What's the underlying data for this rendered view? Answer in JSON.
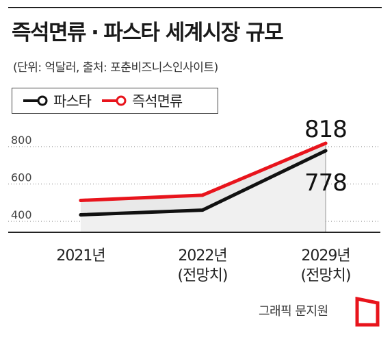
{
  "title": {
    "left": "즉석면류",
    "separator": "·",
    "right": "파스타 세계시장 규모"
  },
  "subtitle": "(단위: 억달러, 출처: 포춘비즈니스인사이트)",
  "legend": [
    {
      "label": "파스타",
      "color": "#111111"
    },
    {
      "label": "즉석면류",
      "color": "#e8141c"
    }
  ],
  "footer": {
    "credit": "그래픽 문지원"
  },
  "colors": {
    "accent": "#e8141c",
    "line": "#111111",
    "fill": "#e9e9e9"
  },
  "chart_data": {
    "type": "line",
    "categories": [
      {
        "line1": "2021년",
        "line2": ""
      },
      {
        "line1": "2022년",
        "line2": "(전망치)"
      },
      {
        "line1": "2029년",
        "line2": "(전망치)"
      }
    ],
    "y_ticks": [
      "400",
      "600",
      "800"
    ],
    "ylim": [
      380,
      860
    ],
    "series": [
      {
        "name": "즉석면류",
        "color": "#e8141c",
        "values": [
          512,
          540,
          818
        ]
      },
      {
        "name": "파스타",
        "color": "#111111",
        "values": [
          435,
          460,
          778
        ]
      }
    ],
    "annotations": [
      "818",
      "778"
    ],
    "grid": "dotted horizontal",
    "legend_position": "top-left"
  }
}
